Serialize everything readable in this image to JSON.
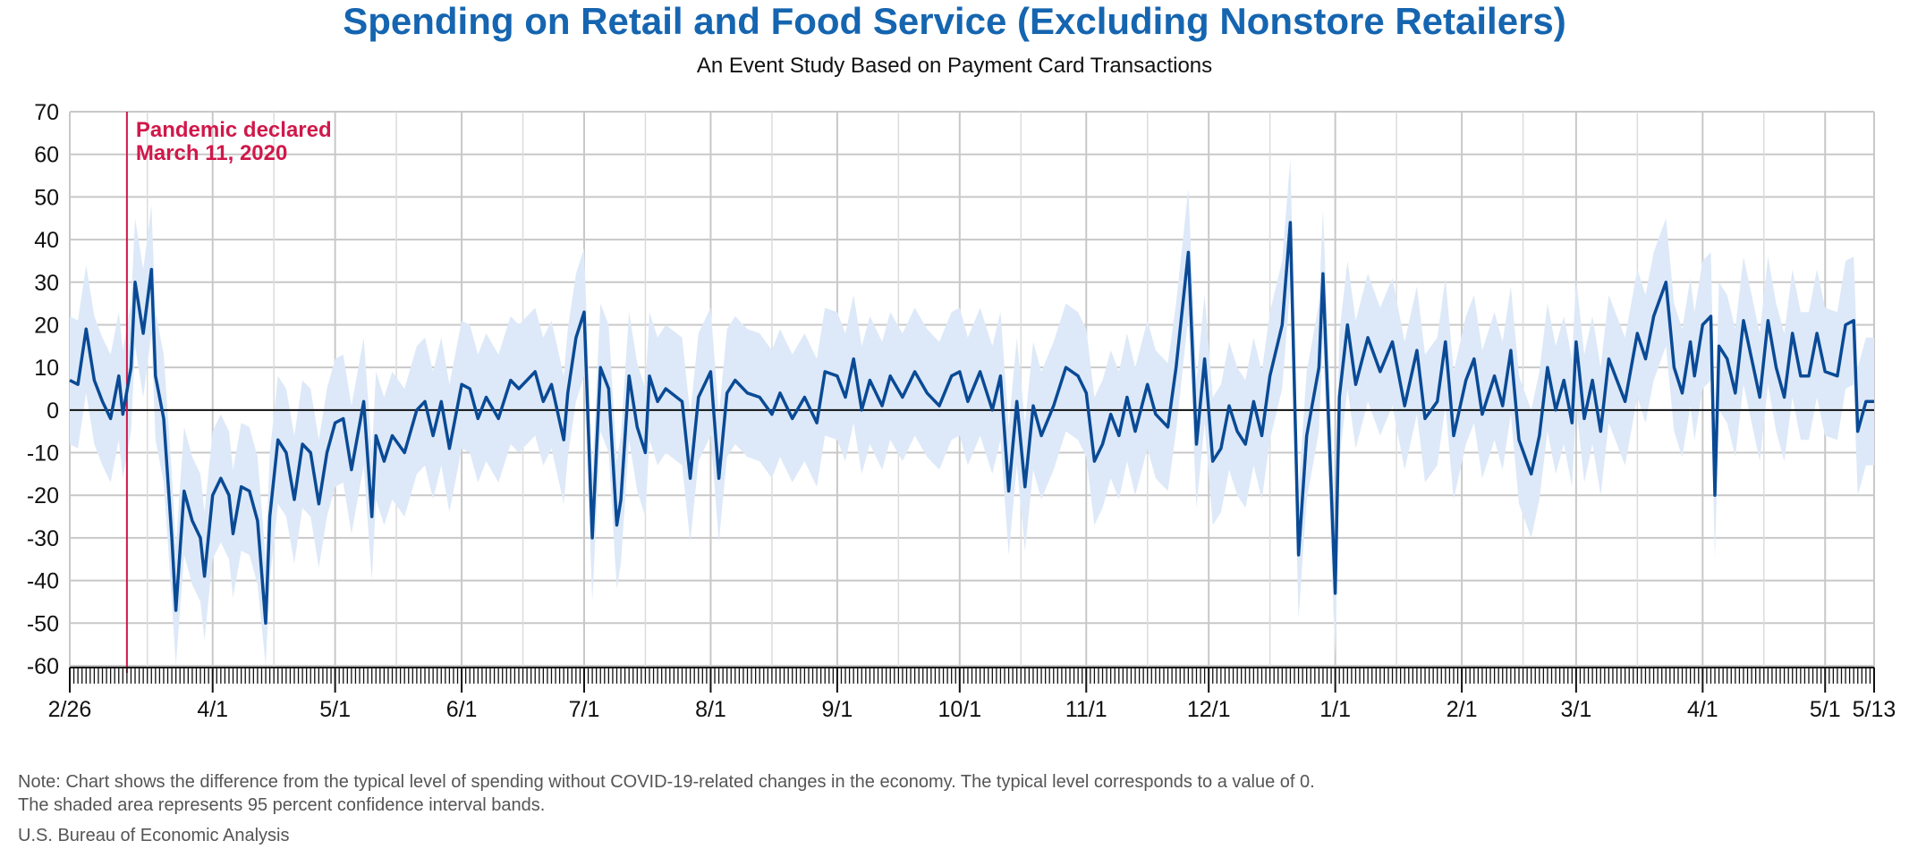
{
  "chart_data": {
    "type": "line",
    "title": "Spending on Retail and Food Service (Excluding Nonstore Retailers)",
    "subtitle": "An Event Study Based on Payment Card Transactions",
    "ylim": [
      -60,
      70
    ],
    "yticks": [
      70,
      60,
      50,
      40,
      30,
      20,
      10,
      0,
      -10,
      -20,
      -30,
      -40,
      -50,
      -60
    ],
    "x_start": "2020-02-26",
    "x_end": "2021-05-13",
    "xtick_labels": [
      {
        "date": "2020-02-26",
        "label": "2/26"
      },
      {
        "date": "2020-04-01",
        "label": "4/1"
      },
      {
        "date": "2020-05-01",
        "label": "5/1"
      },
      {
        "date": "2020-06-01",
        "label": "6/1"
      },
      {
        "date": "2020-07-01",
        "label": "7/1"
      },
      {
        "date": "2020-08-01",
        "label": "8/1"
      },
      {
        "date": "2020-09-01",
        "label": "9/1"
      },
      {
        "date": "2020-10-01",
        "label": "10/1"
      },
      {
        "date": "2020-11-01",
        "label": "11/1"
      },
      {
        "date": "2020-12-01",
        "label": "12/1"
      },
      {
        "date": "2021-01-01",
        "label": "1/1"
      },
      {
        "date": "2021-02-01",
        "label": "2/1"
      },
      {
        "date": "2021-03-01",
        "label": "3/1"
      },
      {
        "date": "2021-04-01",
        "label": "4/1"
      },
      {
        "date": "2021-05-01",
        "label": "5/1"
      },
      {
        "date": "2021-05-13",
        "label": "5/13"
      }
    ],
    "grid": true,
    "annotation": {
      "date": "2020-03-11",
      "lines": [
        "Pandemic declared",
        "March 11, 2020"
      ],
      "color": "#d0184a"
    },
    "series": [
      {
        "name": "",
        "color": "#0a4a95",
        "band_color": "#dde9f8",
        "band_halfwidth": 15,
        "points": [
          [
            "2020-02-26",
            7
          ],
          [
            "2020-02-28",
            6
          ],
          [
            "2020-03-01",
            19
          ],
          [
            "2020-03-03",
            7
          ],
          [
            "2020-03-05",
            2
          ],
          [
            "2020-03-07",
            -2
          ],
          [
            "2020-03-09",
            8
          ],
          [
            "2020-03-10",
            -1
          ],
          [
            "2020-03-12",
            10
          ],
          [
            "2020-03-13",
            30
          ],
          [
            "2020-03-15",
            18
          ],
          [
            "2020-03-17",
            33
          ],
          [
            "2020-03-18",
            8
          ],
          [
            "2020-03-20",
            -2
          ],
          [
            "2020-03-22",
            -30
          ],
          [
            "2020-03-23",
            -47
          ],
          [
            "2020-03-25",
            -19
          ],
          [
            "2020-03-27",
            -26
          ],
          [
            "2020-03-29",
            -30
          ],
          [
            "2020-03-30",
            -39
          ],
          [
            "2020-04-01",
            -20
          ],
          [
            "2020-04-03",
            -16
          ],
          [
            "2020-04-05",
            -20
          ],
          [
            "2020-04-06",
            -29
          ],
          [
            "2020-04-08",
            -18
          ],
          [
            "2020-04-10",
            -19
          ],
          [
            "2020-04-12",
            -26
          ],
          [
            "2020-04-14",
            -50
          ],
          [
            "2020-04-15",
            -25
          ],
          [
            "2020-04-17",
            -7
          ],
          [
            "2020-04-19",
            -10
          ],
          [
            "2020-04-21",
            -21
          ],
          [
            "2020-04-23",
            -8
          ],
          [
            "2020-04-25",
            -10
          ],
          [
            "2020-04-27",
            -22
          ],
          [
            "2020-04-29",
            -10
          ],
          [
            "2020-05-01",
            -3
          ],
          [
            "2020-05-03",
            -2
          ],
          [
            "2020-05-05",
            -14
          ],
          [
            "2020-05-08",
            2
          ],
          [
            "2020-05-10",
            -25
          ],
          [
            "2020-05-11",
            -6
          ],
          [
            "2020-05-13",
            -12
          ],
          [
            "2020-05-15",
            -6
          ],
          [
            "2020-05-18",
            -10
          ],
          [
            "2020-05-21",
            0
          ],
          [
            "2020-05-23",
            2
          ],
          [
            "2020-05-25",
            -6
          ],
          [
            "2020-05-27",
            2
          ],
          [
            "2020-05-29",
            -9
          ],
          [
            "2020-06-01",
            6
          ],
          [
            "2020-06-03",
            5
          ],
          [
            "2020-06-05",
            -2
          ],
          [
            "2020-06-07",
            3
          ],
          [
            "2020-06-10",
            -2
          ],
          [
            "2020-06-13",
            7
          ],
          [
            "2020-06-15",
            5
          ],
          [
            "2020-06-19",
            9
          ],
          [
            "2020-06-21",
            2
          ],
          [
            "2020-06-23",
            6
          ],
          [
            "2020-06-26",
            -7
          ],
          [
            "2020-06-27",
            4
          ],
          [
            "2020-06-29",
            17
          ],
          [
            "2020-07-01",
            23
          ],
          [
            "2020-07-03",
            -30
          ],
          [
            "2020-07-05",
            10
          ],
          [
            "2020-07-07",
            5
          ],
          [
            "2020-07-09",
            -27
          ],
          [
            "2020-07-10",
            -21
          ],
          [
            "2020-07-12",
            8
          ],
          [
            "2020-07-14",
            -4
          ],
          [
            "2020-07-16",
            -10
          ],
          [
            "2020-07-17",
            8
          ],
          [
            "2020-07-19",
            2
          ],
          [
            "2020-07-21",
            5
          ],
          [
            "2020-07-25",
            2
          ],
          [
            "2020-07-27",
            -16
          ],
          [
            "2020-07-29",
            3
          ],
          [
            "2020-08-01",
            9
          ],
          [
            "2020-08-03",
            -16
          ],
          [
            "2020-08-05",
            4
          ],
          [
            "2020-08-07",
            7
          ],
          [
            "2020-08-10",
            4
          ],
          [
            "2020-08-13",
            3
          ],
          [
            "2020-08-16",
            -1
          ],
          [
            "2020-08-18",
            4
          ],
          [
            "2020-08-21",
            -2
          ],
          [
            "2020-08-24",
            3
          ],
          [
            "2020-08-27",
            -3
          ],
          [
            "2020-08-29",
            9
          ],
          [
            "2020-09-01",
            8
          ],
          [
            "2020-09-03",
            3
          ],
          [
            "2020-09-05",
            12
          ],
          [
            "2020-09-07",
            0
          ],
          [
            "2020-09-09",
            7
          ],
          [
            "2020-09-12",
            1
          ],
          [
            "2020-09-14",
            8
          ],
          [
            "2020-09-17",
            3
          ],
          [
            "2020-09-20",
            9
          ],
          [
            "2020-09-23",
            4
          ],
          [
            "2020-09-26",
            1
          ],
          [
            "2020-09-29",
            8
          ],
          [
            "2020-10-01",
            9
          ],
          [
            "2020-10-03",
            2
          ],
          [
            "2020-10-06",
            9
          ],
          [
            "2020-10-09",
            0
          ],
          [
            "2020-10-11",
            8
          ],
          [
            "2020-10-13",
            -19
          ],
          [
            "2020-10-15",
            2
          ],
          [
            "2020-10-17",
            -18
          ],
          [
            "2020-10-19",
            1
          ],
          [
            "2020-10-21",
            -6
          ],
          [
            "2020-10-24",
            1
          ],
          [
            "2020-10-27",
            10
          ],
          [
            "2020-10-30",
            8
          ],
          [
            "2020-11-01",
            4
          ],
          [
            "2020-11-03",
            -12
          ],
          [
            "2020-11-05",
            -8
          ],
          [
            "2020-11-07",
            -1
          ],
          [
            "2020-11-09",
            -6
          ],
          [
            "2020-11-11",
            3
          ],
          [
            "2020-11-13",
            -5
          ],
          [
            "2020-11-16",
            6
          ],
          [
            "2020-11-18",
            -1
          ],
          [
            "2020-11-21",
            -4
          ],
          [
            "2020-11-23",
            10
          ],
          [
            "2020-11-26",
            37
          ],
          [
            "2020-11-28",
            -8
          ],
          [
            "2020-11-30",
            12
          ],
          [
            "2020-12-02",
            -12
          ],
          [
            "2020-12-04",
            -9
          ],
          [
            "2020-12-06",
            1
          ],
          [
            "2020-12-08",
            -5
          ],
          [
            "2020-12-10",
            -8
          ],
          [
            "2020-12-12",
            2
          ],
          [
            "2020-12-14",
            -6
          ],
          [
            "2020-12-16",
            8
          ],
          [
            "2020-12-19",
            20
          ],
          [
            "2020-12-21",
            44
          ],
          [
            "2020-12-23",
            -34
          ],
          [
            "2020-12-25",
            -6
          ],
          [
            "2020-12-28",
            10
          ],
          [
            "2020-12-29",
            32
          ],
          [
            "2021-01-01",
            -43
          ],
          [
            "2021-01-02",
            3
          ],
          [
            "2021-01-04",
            20
          ],
          [
            "2021-01-06",
            6
          ],
          [
            "2021-01-09",
            17
          ],
          [
            "2021-01-12",
            9
          ],
          [
            "2021-01-15",
            16
          ],
          [
            "2021-01-18",
            1
          ],
          [
            "2021-01-21",
            14
          ],
          [
            "2021-01-23",
            -2
          ],
          [
            "2021-01-26",
            2
          ],
          [
            "2021-01-28",
            16
          ],
          [
            "2021-01-30",
            -6
          ],
          [
            "2021-02-02",
            7
          ],
          [
            "2021-02-04",
            12
          ],
          [
            "2021-02-06",
            -1
          ],
          [
            "2021-02-09",
            8
          ],
          [
            "2021-02-11",
            1
          ],
          [
            "2021-02-13",
            14
          ],
          [
            "2021-02-15",
            -7
          ],
          [
            "2021-02-18",
            -15
          ],
          [
            "2021-02-20",
            -6
          ],
          [
            "2021-02-22",
            10
          ],
          [
            "2021-02-24",
            0
          ],
          [
            "2021-02-26",
            7
          ],
          [
            "2021-02-28",
            -3
          ],
          [
            "2021-03-01",
            16
          ],
          [
            "2021-03-03",
            -2
          ],
          [
            "2021-03-05",
            7
          ],
          [
            "2021-03-07",
            -5
          ],
          [
            "2021-03-09",
            12
          ],
          [
            "2021-03-13",
            2
          ],
          [
            "2021-03-16",
            18
          ],
          [
            "2021-03-18",
            12
          ],
          [
            "2021-03-20",
            22
          ],
          [
            "2021-03-23",
            30
          ],
          [
            "2021-03-25",
            10
          ],
          [
            "2021-03-27",
            4
          ],
          [
            "2021-03-29",
            16
          ],
          [
            "2021-03-30",
            8
          ],
          [
            "2021-04-01",
            20
          ],
          [
            "2021-04-03",
            22
          ],
          [
            "2021-04-04",
            -20
          ],
          [
            "2021-04-05",
            15
          ],
          [
            "2021-04-07",
            12
          ],
          [
            "2021-04-09",
            4
          ],
          [
            "2021-04-11",
            21
          ],
          [
            "2021-04-13",
            12
          ],
          [
            "2021-04-15",
            3
          ],
          [
            "2021-04-17",
            21
          ],
          [
            "2021-04-19",
            10
          ],
          [
            "2021-04-21",
            3
          ],
          [
            "2021-04-23",
            18
          ],
          [
            "2021-04-25",
            8
          ],
          [
            "2021-04-27",
            8
          ],
          [
            "2021-04-29",
            18
          ],
          [
            "2021-05-01",
            9
          ],
          [
            "2021-05-04",
            8
          ],
          [
            "2021-05-06",
            20
          ],
          [
            "2021-05-08",
            21
          ],
          [
            "2021-05-09",
            -5
          ],
          [
            "2021-05-11",
            2
          ],
          [
            "2021-05-13",
            2
          ]
        ]
      }
    ]
  },
  "footer": {
    "note_line1": "Note: Chart shows the difference from the typical level of spending without COVID-19-related changes in the economy. The typical level corresponds to a value of 0.",
    "note_line2": "The shaded area represents 95 percent confidence interval bands.",
    "source": "U.S. Bureau of Economic Analysis"
  }
}
